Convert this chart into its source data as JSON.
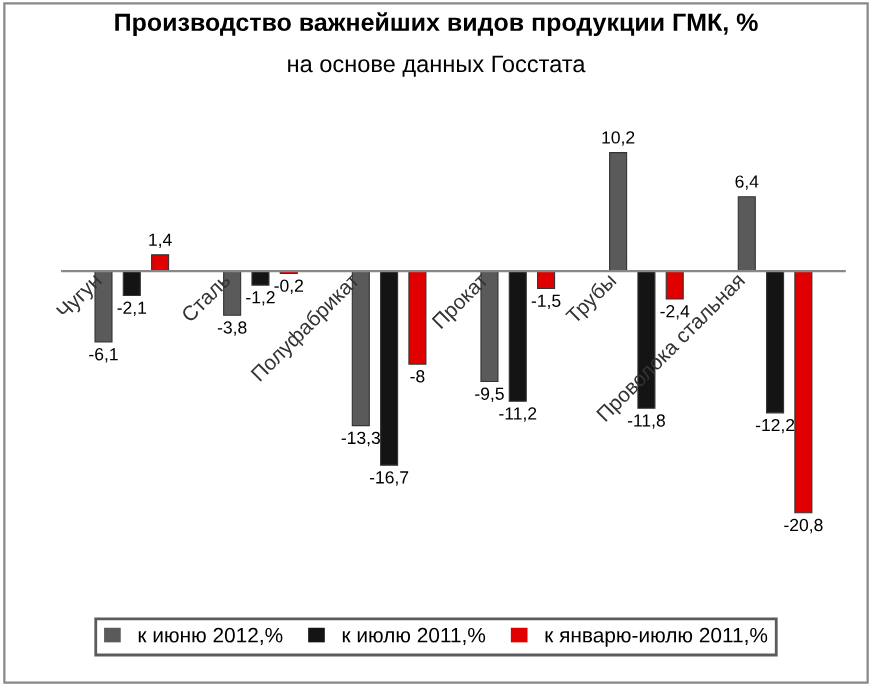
{
  "chart_data": {
    "type": "bar",
    "title": "Производство важнейших видов продукции ГМК, %",
    "subtitle": "на основе данных Госстата",
    "categories": [
      "Чугун",
      "Сталь",
      "Полуфабрикат",
      "Прокат",
      "Трубы",
      "Проволока стальная"
    ],
    "legend": "bottom",
    "series": [
      {
        "name": "к июню 2012,%",
        "color": "#5a5a5a",
        "values": [
          -6.1,
          -3.8,
          -13.3,
          -9.5,
          10.2,
          6.4
        ],
        "value_labels": [
          "-6,1",
          "-3,8",
          "-13,3",
          "-9,5",
          "10,2",
          "6,4"
        ]
      },
      {
        "name": "к июлю 2011,%",
        "color": "#141414",
        "values": [
          -2.1,
          -1.2,
          -16.7,
          -11.2,
          -11.8,
          -12.2
        ],
        "value_labels": [
          "-2,1",
          "-1,2",
          "-16,7",
          "-11,2",
          "-11,8",
          "-12,2"
        ]
      },
      {
        "name": "к январю-июлю 2011,%",
        "color": "#e00000",
        "values": [
          1.4,
          -0.2,
          -8,
          -1.5,
          -2.4,
          -20.8
        ],
        "value_labels": [
          "1,4",
          "-0,2",
          "-8",
          "-1,5",
          "-2,4",
          "-20,8"
        ]
      }
    ]
  }
}
